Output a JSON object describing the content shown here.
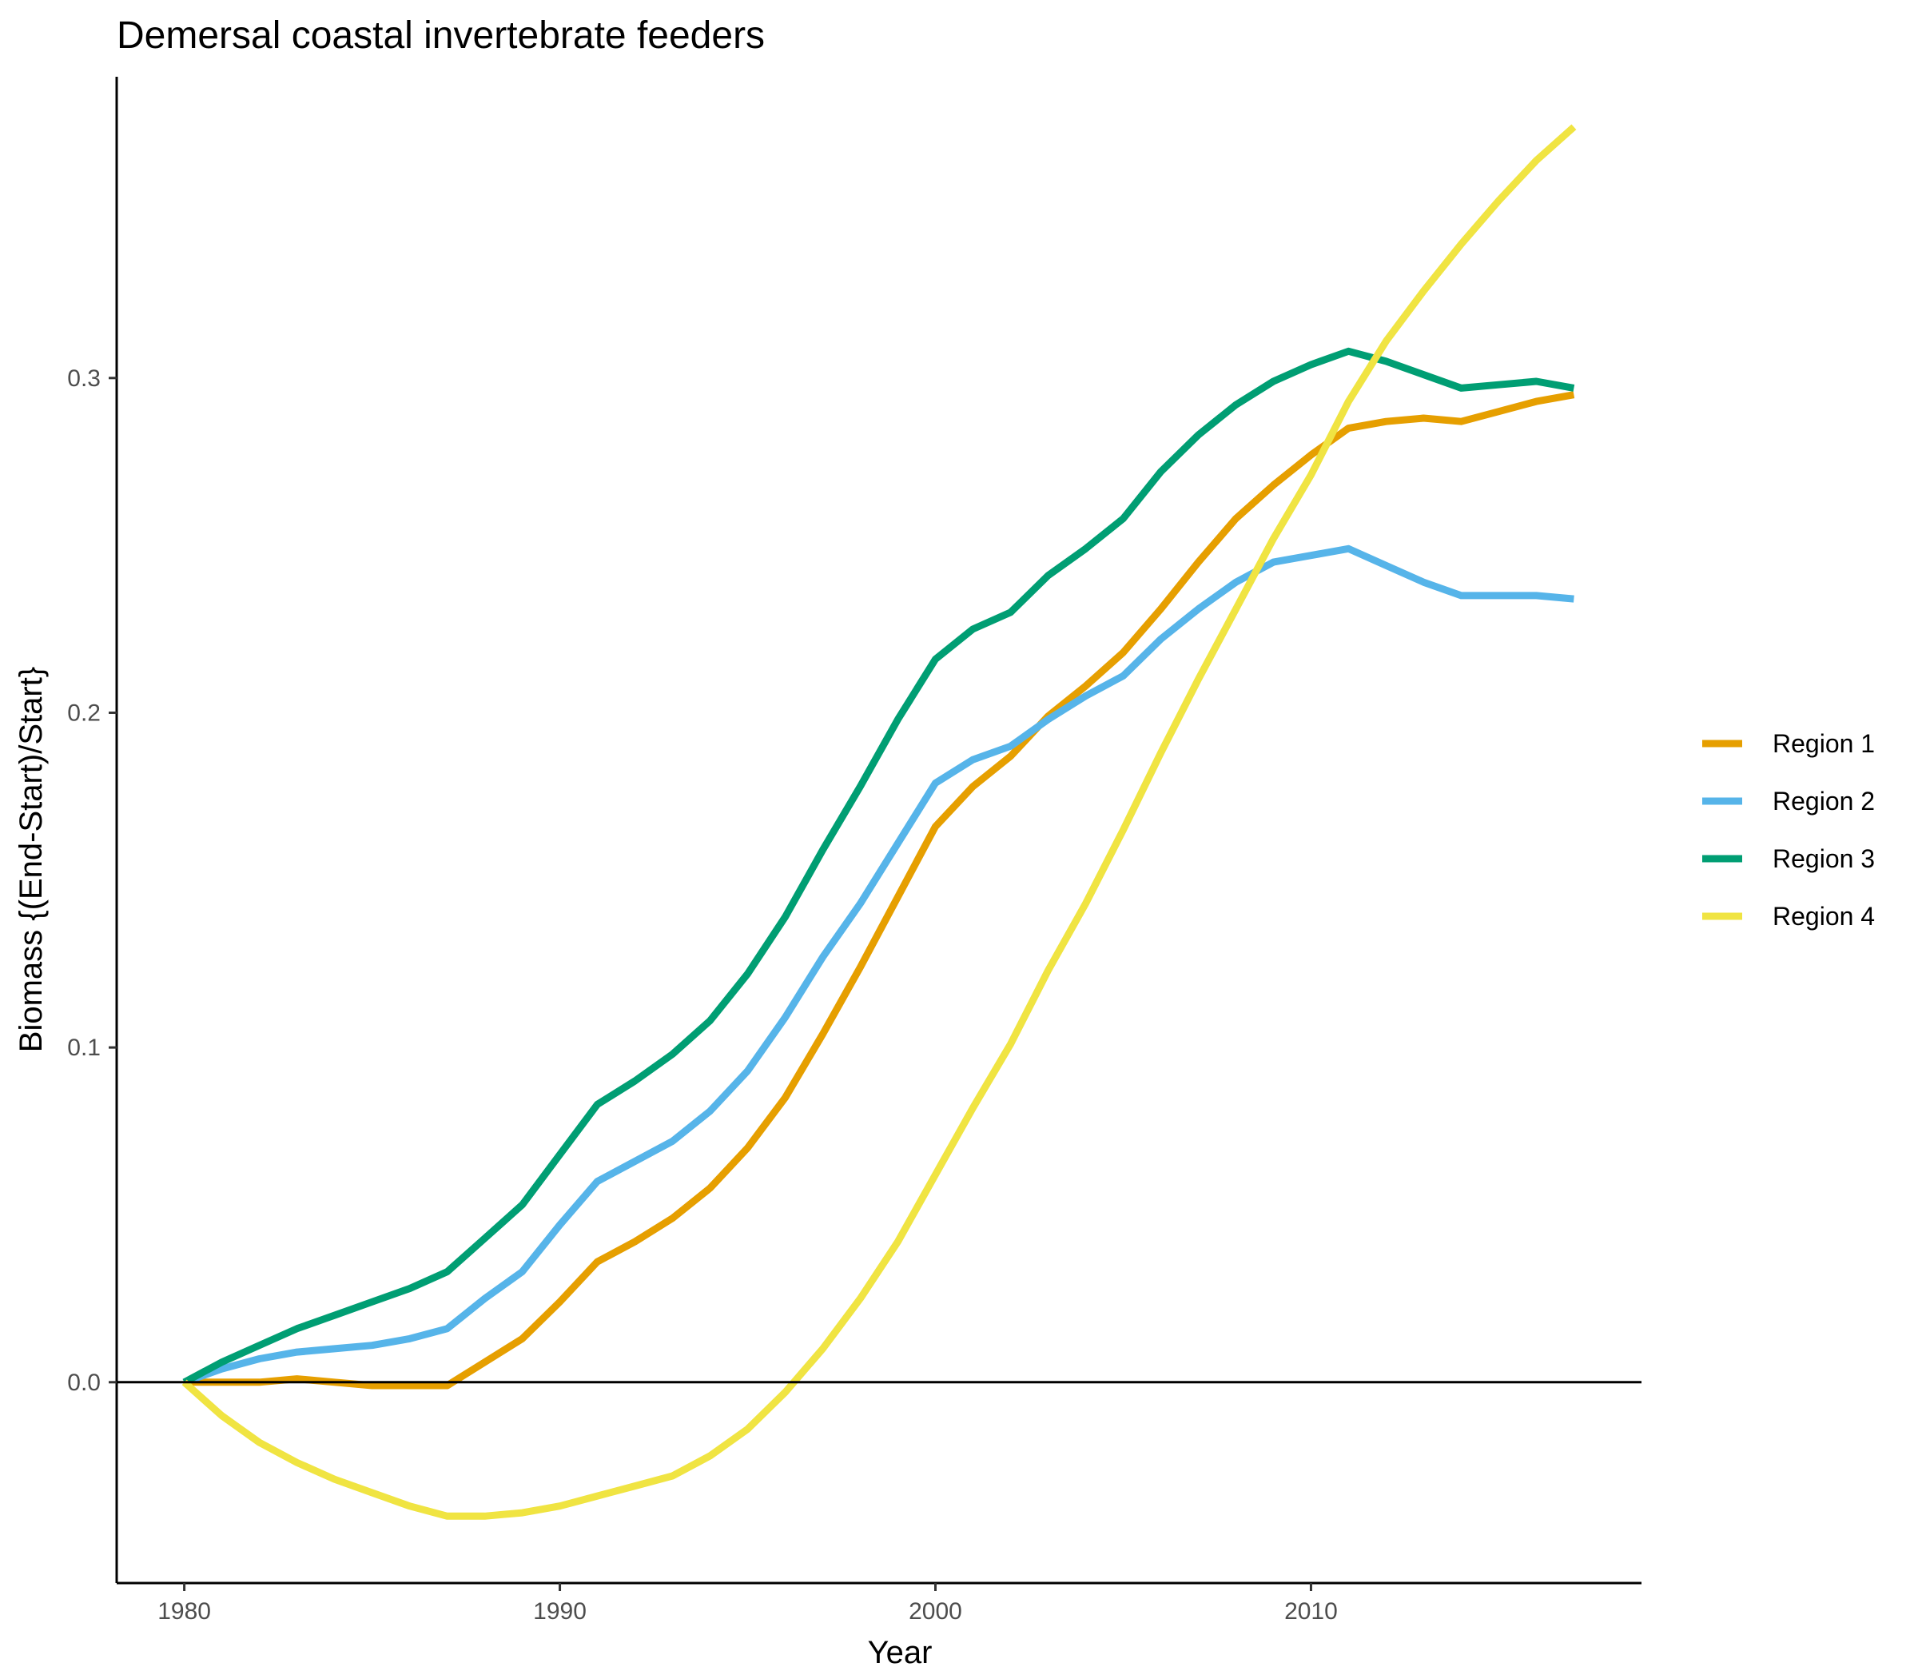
{
  "chart_data": {
    "type": "line",
    "title": "Demersal coastal invertebrate feeders",
    "xlabel": "Year",
    "ylabel": "Biomass {(End-Start)/Start}",
    "xlim": [
      1978.2,
      2018.8
    ],
    "ylim": [
      -0.06,
      0.39
    ],
    "x_ticks": [
      1980,
      1990,
      2000,
      2010
    ],
    "x_tick_labels": [
      "1980",
      "1990",
      "2000",
      "2010"
    ],
    "y_ticks": [
      0.0,
      0.1,
      0.2,
      0.3
    ],
    "y_tick_labels": [
      "0.0",
      "0.1",
      "0.2",
      "0.3"
    ],
    "grid": false,
    "zero_line": true,
    "legend_position": "right",
    "x": [
      1980,
      1981,
      1982,
      1983,
      1984,
      1985,
      1986,
      1987,
      1988,
      1989,
      1990,
      1991,
      1992,
      1993,
      1994,
      1995,
      1996,
      1997,
      1998,
      1999,
      2000,
      2001,
      2002,
      2003,
      2004,
      2005,
      2006,
      2007,
      2008,
      2009,
      2010,
      2011,
      2012,
      2013,
      2014,
      2015,
      2016,
      2017
    ],
    "series": [
      {
        "name": "Region 1",
        "color": "#E69F00",
        "values": [
          0.0,
          0.0,
          0.0,
          0.001,
          0.0,
          -0.001,
          -0.001,
          -0.001,
          0.006,
          0.013,
          0.024,
          0.036,
          0.042,
          0.049,
          0.058,
          0.07,
          0.085,
          0.104,
          0.124,
          0.145,
          0.166,
          0.178,
          0.187,
          0.199,
          0.208,
          0.218,
          0.231,
          0.245,
          0.258,
          0.268,
          0.277,
          0.285,
          0.287,
          0.288,
          0.287,
          0.29,
          0.293,
          0.295
        ]
      },
      {
        "name": "Region 2",
        "color": "#56B4E9",
        "values": [
          0.0,
          0.004,
          0.007,
          0.009,
          0.01,
          0.011,
          0.013,
          0.016,
          0.025,
          0.033,
          0.047,
          0.06,
          0.066,
          0.072,
          0.081,
          0.093,
          0.109,
          0.127,
          0.143,
          0.161,
          0.179,
          0.186,
          0.19,
          0.198,
          0.205,
          0.211,
          0.222,
          0.231,
          0.239,
          0.245,
          0.247,
          0.249,
          0.244,
          0.239,
          0.235,
          0.235,
          0.235,
          0.234
        ]
      },
      {
        "name": "Region 3",
        "color": "#009E73",
        "values": [
          0.0,
          0.006,
          0.011,
          0.016,
          0.02,
          0.024,
          0.028,
          0.033,
          0.043,
          0.053,
          0.068,
          0.083,
          0.09,
          0.098,
          0.108,
          0.122,
          0.139,
          0.159,
          0.178,
          0.198,
          0.216,
          0.225,
          0.23,
          0.241,
          0.249,
          0.258,
          0.272,
          0.283,
          0.292,
          0.299,
          0.304,
          0.308,
          0.305,
          0.301,
          0.297,
          0.298,
          0.299,
          0.297
        ]
      },
      {
        "name": "Region 4",
        "color": "#F0E442",
        "values": [
          0.0,
          -0.01,
          -0.018,
          -0.024,
          -0.029,
          -0.033,
          -0.037,
          -0.04,
          -0.04,
          -0.039,
          -0.037,
          -0.034,
          -0.031,
          -0.028,
          -0.022,
          -0.014,
          -0.003,
          0.01,
          0.025,
          0.042,
          0.062,
          0.082,
          0.101,
          0.123,
          0.143,
          0.165,
          0.188,
          0.21,
          0.231,
          0.252,
          0.271,
          0.293,
          0.311,
          0.326,
          0.34,
          0.353,
          0.365,
          0.375
        ]
      }
    ]
  }
}
